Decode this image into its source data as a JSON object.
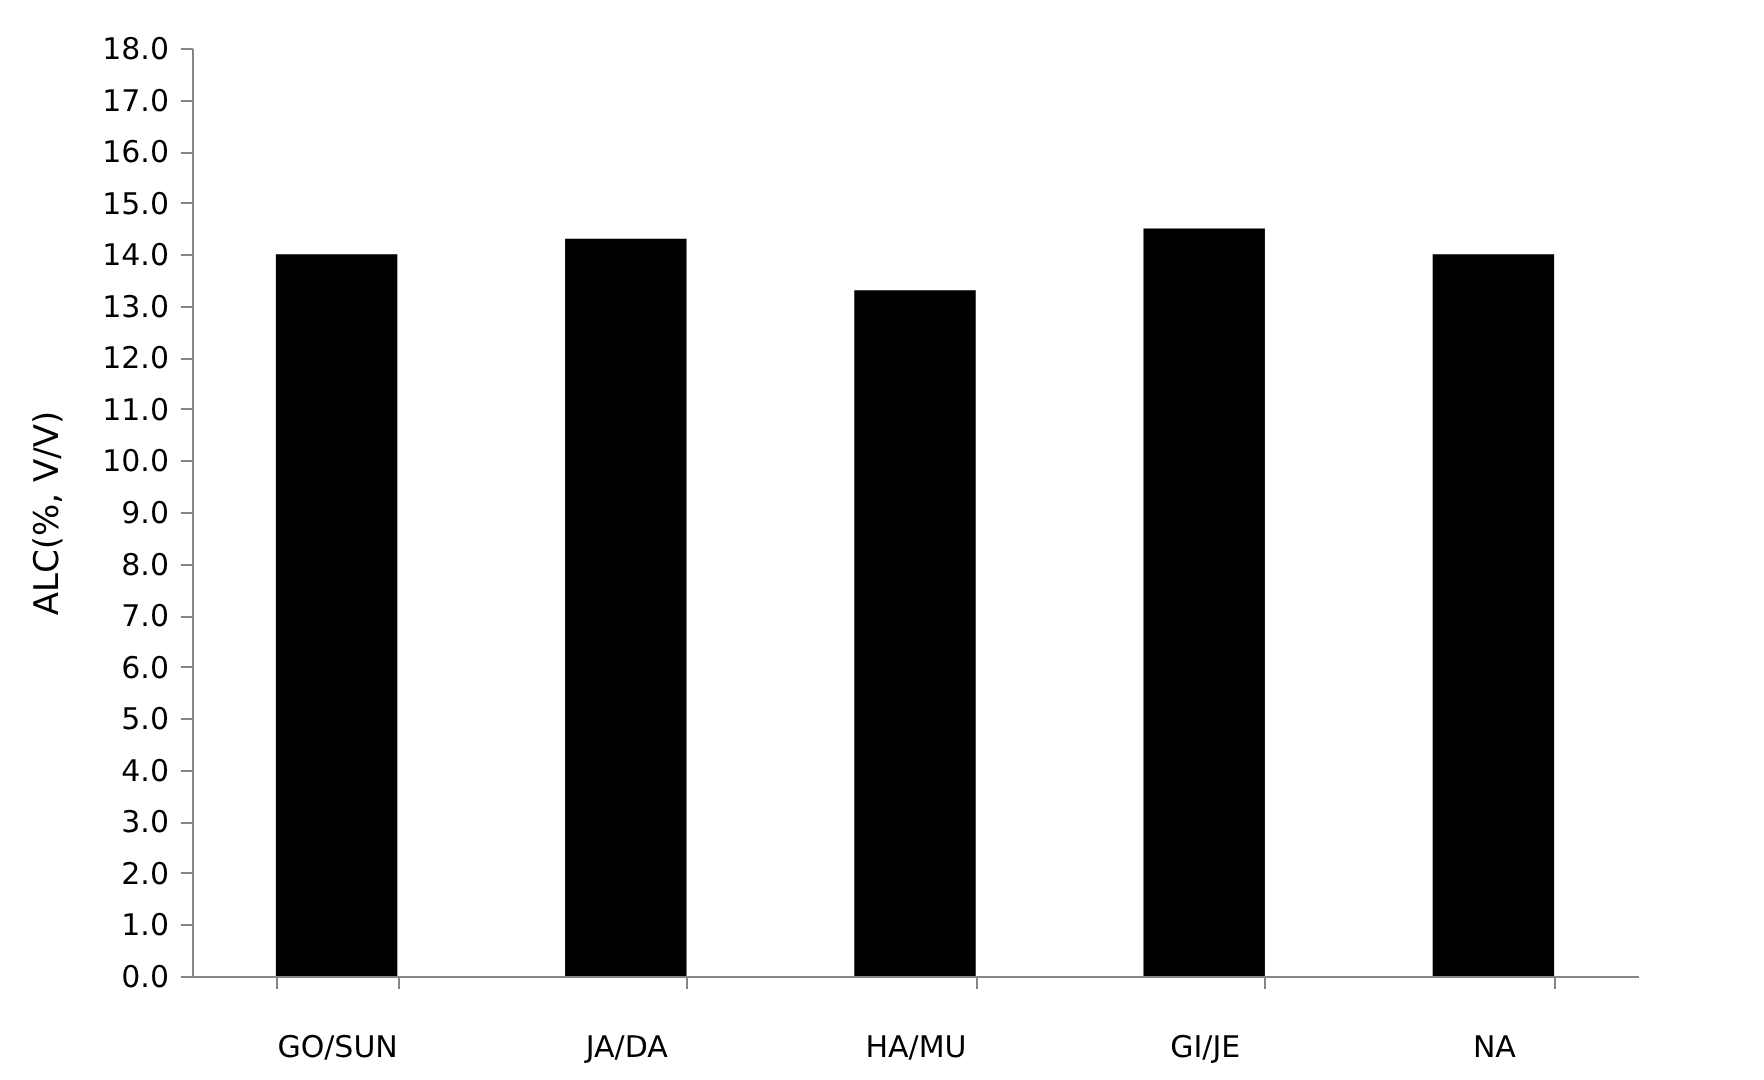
{
  "chart_data": {
    "type": "bar",
    "ylabel": "ALC(%, V/V)",
    "categories": [
      "GO/SUN",
      "JA/DA",
      "HA/MU",
      "GI/JE",
      "NA"
    ],
    "values": [
      14.0,
      14.3,
      13.3,
      14.5,
      14.0
    ],
    "color": "#000000",
    "ylim": [
      0,
      18
    ],
    "yticks": [
      {
        "value": 0,
        "label": "0.0"
      },
      {
        "value": 1,
        "label": "1.0"
      },
      {
        "value": 2,
        "label": "2.0"
      },
      {
        "value": 3,
        "label": "3.0"
      },
      {
        "value": 4,
        "label": "4.0"
      },
      {
        "value": 5,
        "label": "5.0"
      },
      {
        "value": 6,
        "label": "6.0"
      },
      {
        "value": 7,
        "label": "7.0"
      },
      {
        "value": 8,
        "label": "8.0"
      },
      {
        "value": 9,
        "label": "9.0"
      },
      {
        "value": 10,
        "label": "10.0"
      },
      {
        "value": 11,
        "label": "11.0"
      },
      {
        "value": 12,
        "label": "12.0"
      },
      {
        "value": 13,
        "label": "13.0"
      },
      {
        "value": 14,
        "label": "14.0"
      },
      {
        "value": 15,
        "label": "15.0"
      },
      {
        "value": 16,
        "label": "16.0"
      },
      {
        "value": 17,
        "label": "17.0"
      },
      {
        "value": 18,
        "label": "18.0"
      }
    ],
    "grid": false
  }
}
